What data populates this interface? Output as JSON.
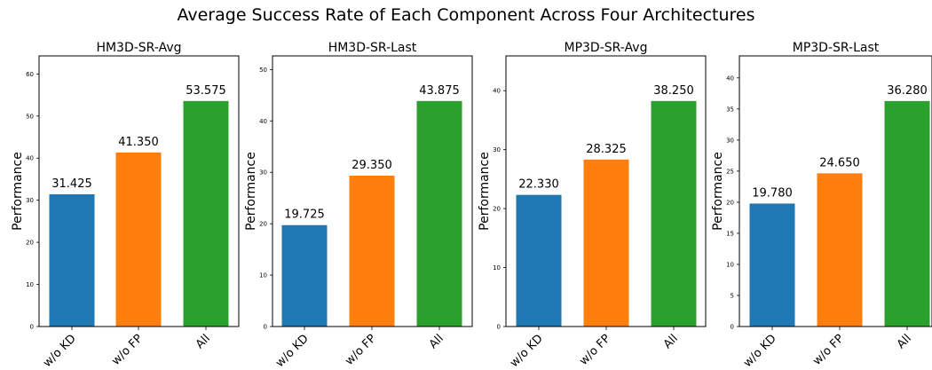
{
  "figure_title": "Average Success Rate of Each Component Across Four Architectures",
  "colors": {
    "w/o KD": "#1f77b4",
    "w/o FP": "#ff7f0e",
    "All": "#2ca02c"
  },
  "chart_data": [
    {
      "type": "bar",
      "title": "HM3D-SR-Avg",
      "ylabel": "Performance",
      "xlabel": "",
      "categories": [
        "w/o KD",
        "w/o FP",
        "All"
      ],
      "values": [
        31.425,
        41.35,
        53.575
      ],
      "value_labels": [
        "31.425",
        "41.350",
        "53.575"
      ],
      "ylim": [
        0,
        64.29
      ],
      "yticks": [
        0,
        10,
        20,
        30,
        40,
        50,
        60
      ],
      "grid": false
    },
    {
      "type": "bar",
      "title": "HM3D-SR-Last",
      "ylabel": "Performance",
      "xlabel": "",
      "categories": [
        "w/o KD",
        "w/o FP",
        "All"
      ],
      "values": [
        19.725,
        29.35,
        43.875
      ],
      "value_labels": [
        "19.725",
        "29.350",
        "43.875"
      ],
      "ylim": [
        0,
        52.65
      ],
      "yticks": [
        0,
        10,
        20,
        30,
        40,
        50
      ],
      "grid": false
    },
    {
      "type": "bar",
      "title": "MP3D-SR-Avg",
      "ylabel": "Performance",
      "xlabel": "",
      "categories": [
        "w/o KD",
        "w/o FP",
        "All"
      ],
      "values": [
        22.33,
        28.325,
        38.25
      ],
      "value_labels": [
        "22.330",
        "28.325",
        "38.250"
      ],
      "ylim": [
        0,
        45.9
      ],
      "yticks": [
        0,
        10,
        20,
        30,
        40
      ],
      "grid": false
    },
    {
      "type": "bar",
      "title": "MP3D-SR-Last",
      "ylabel": "Performance",
      "xlabel": "",
      "categories": [
        "w/o KD",
        "w/o FP",
        "All"
      ],
      "values": [
        19.78,
        24.65,
        36.28
      ],
      "value_labels": [
        "19.780",
        "24.650",
        "36.280"
      ],
      "ylim": [
        0,
        43.54
      ],
      "yticks": [
        0,
        5,
        10,
        15,
        20,
        25,
        30,
        35,
        40
      ],
      "grid": false
    }
  ]
}
